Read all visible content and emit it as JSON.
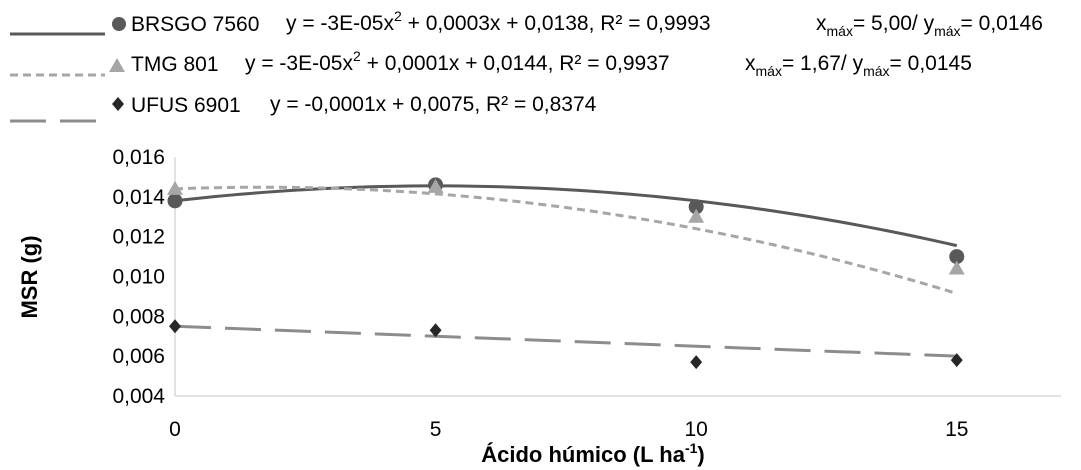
{
  "chart_data": {
    "type": "scatter",
    "xlabel_main": "Ácido húmico (L ha",
    "xlabel_sup": "-1",
    "xlabel_close": ")",
    "ylabel": "MSR (g)",
    "xlim": [
      0,
      17
    ],
    "ylim": [
      0.004,
      0.016
    ],
    "xticks": [
      0,
      5,
      10,
      15
    ],
    "yticks": [
      0.004,
      0.006,
      0.008,
      0.01,
      0.012,
      0.014,
      0.016
    ],
    "ytick_labels": [
      "0,004",
      "0,006",
      "0,008",
      "0,010",
      "0,012",
      "0,014",
      "0,016"
    ],
    "xtick_labels": [
      "0",
      "5",
      "10",
      "15"
    ],
    "series": [
      {
        "name": "BRSGO 7560",
        "marker": "circle",
        "color": "#595959",
        "trend_color": "#595959",
        "trend_style": "solid",
        "x": [
          0,
          5,
          10,
          15
        ],
        "y": [
          0.0138,
          0.0146,
          0.0135,
          0.011
        ],
        "trend": {
          "type": "poly2",
          "a": -3e-05,
          "b": 0.0003,
          "c": 0.0138,
          "x_from": 0,
          "x_to": 15
        },
        "equation_pre": "y = -3E-05x",
        "equation_sup": "2",
        "equation_post": " + 0,0003x + 0,0138, R² = 0,9993",
        "max_x_label": "x",
        "max_x_sub": "máx",
        "max_x_val": "= 5,00/ y",
        "max_y_sub": "máx",
        "max_y_val": "= 0,0146"
      },
      {
        "name": "TMG 801",
        "marker": "triangle",
        "color": "#a6a6a6",
        "trend_color": "#a6a6a6",
        "trend_style": "short-dash",
        "x": [
          0,
          5,
          10,
          15
        ],
        "y": [
          0.0144,
          0.0145,
          0.013,
          0.0104
        ],
        "trend": {
          "type": "poly2",
          "a": -3e-05,
          "b": 0.0001,
          "c": 0.0144,
          "x_from": 0,
          "x_to": 15
        },
        "equation_pre": "y = -3E-05x",
        "equation_sup": "2",
        "equation_post": " + 0,0001x + 0,0144, R² = 0,9937",
        "max_x_label": "x",
        "max_x_sub": "máx",
        "max_x_val": "= 1,67/ y",
        "max_y_sub": "máx",
        "max_y_val": "= 0,0145"
      },
      {
        "name": "UFUS 6901",
        "marker": "diamond",
        "color": "#262626",
        "trend_color": "#8c8c8c",
        "trend_style": "long-dash",
        "x": [
          0,
          5,
          10,
          15
        ],
        "y": [
          0.0075,
          0.0073,
          0.0057,
          0.0058
        ],
        "trend": {
          "type": "linear",
          "a": 0,
          "b": -0.0001,
          "c": 0.0075,
          "x_from": 0,
          "x_to": 15
        },
        "equation_pre": "y = -0,0001x + 0,0075, R² = 0,8374"
      }
    ],
    "legend_position": "top",
    "grid": false
  }
}
